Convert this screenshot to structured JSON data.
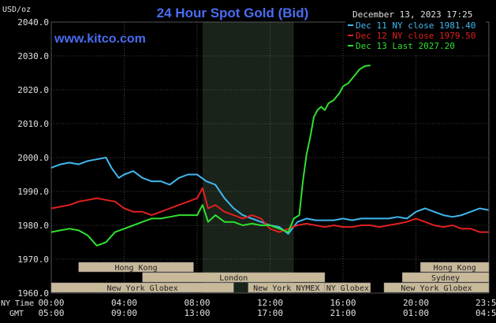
{
  "chart_data": {
    "type": "line",
    "title": "24 Hour Spot Gold (Bid)",
    "watermark": "www.kitco.com",
    "date_label": "December 13, 2023 17:25",
    "ylabel": "USD/oz",
    "ylim": [
      1960,
      2040
    ],
    "y_ticks": [
      "2040.0",
      "2030.0",
      "2020.0",
      "2010.0",
      "2000.0",
      "1990.0",
      "1980.0",
      "1970.0",
      "1960.0"
    ],
    "x_ticks_ny": [
      "00:00",
      "04:00",
      "08:00",
      "12:00",
      "16:00",
      "20:00",
      "23:59"
    ],
    "x_ticks_gmt": [
      "05:00",
      "09:00",
      "13:00",
      "17:00",
      "21:00",
      "01:00",
      "04:59"
    ],
    "ny_time_label": "NY Time",
    "gmt_label": "GMT",
    "grid": true,
    "legend_position": "top-right",
    "colors": {
      "background": "#000000",
      "grid": "#7a7a7a",
      "title": "#4a6cf0",
      "highlight": "#1a231a",
      "bar_fill": "#c8b99a",
      "bar_text": "#222222"
    },
    "markets": [
      {
        "name": "Hong Kong",
        "start": 1.5,
        "end": 7.8
      },
      {
        "name": "London",
        "start": 5.0,
        "end": 15.0
      },
      {
        "name": "New York Globex",
        "start": 0,
        "end": 10.0
      },
      {
        "name": "New York NYMEX",
        "start": 10.8,
        "end": 15.0
      },
      {
        "name": "NY Globex",
        "start": 15.0,
        "end": 17.5
      },
      {
        "name": "Hong Kong",
        "start": 20.25,
        "end": 24.0
      },
      {
        "name": "Sydney",
        "start": 19.25,
        "end": 24.0
      },
      {
        "name": "New York Globex",
        "start": 18.25,
        "end": 24.0
      }
    ],
    "highlight_range": [
      8.3,
      13.3
    ],
    "series": [
      {
        "name": "Dec 11 NY close 1981.40",
        "color": "#40b8f0",
        "x": [
          0,
          0.5,
          1,
          1.5,
          2,
          2.5,
          3,
          3.3,
          3.7,
          4,
          4.5,
          5,
          5.5,
          6,
          6.5,
          7,
          7.5,
          8,
          8.5,
          9,
          9.5,
          10,
          10.5,
          11,
          11.5,
          12,
          12.5,
          13,
          13.5,
          14,
          14.5,
          15,
          15.5,
          16,
          16.5,
          17,
          17.5,
          18,
          18.5,
          19,
          19.5,
          20,
          20.5,
          21,
          21.5,
          22,
          22.5,
          23,
          23.5,
          23.98
        ],
        "values": [
          1997,
          1998,
          1998.5,
          1998,
          1999,
          1999.5,
          2000,
          1997,
          1994,
          1995,
          1996,
          1994,
          1993,
          1993,
          1992,
          1994,
          1995,
          1995,
          1993,
          1992,
          1988,
          1985,
          1983,
          1982,
          1981,
          1980,
          1979.5,
          1977.5,
          1981,
          1982,
          1981.5,
          1981.5,
          1981.5,
          1982,
          1981.5,
          1982,
          1982,
          1982,
          1982,
          1982.5,
          1982,
          1984,
          1985,
          1984,
          1983,
          1982.5,
          1983,
          1984,
          1985,
          1984.5
        ]
      },
      {
        "name": "Dec 12 NY close 1979.50",
        "color": "#e02020",
        "x": [
          0,
          0.5,
          1,
          1.5,
          2,
          2.5,
          3,
          3.5,
          4,
          4.5,
          5,
          5.5,
          6,
          6.5,
          7,
          7.5,
          8,
          8.3,
          8.6,
          9,
          9.5,
          10,
          10.5,
          11,
          11.5,
          12,
          12.5,
          13,
          13.5,
          14,
          14.5,
          15,
          15.5,
          16,
          16.5,
          17,
          17.5,
          18,
          18.5,
          19,
          19.5,
          20,
          20.5,
          21,
          21.5,
          22,
          22.5,
          23,
          23.5,
          23.98
        ],
        "values": [
          1985,
          1985.5,
          1986,
          1987,
          1987.5,
          1988,
          1987.5,
          1987,
          1985,
          1984,
          1984,
          1983,
          1984,
          1985,
          1986,
          1987,
          1988,
          1991,
          1985,
          1986,
          1984,
          1983,
          1982,
          1983,
          1982,
          1979,
          1978,
          1979,
          1980,
          1980.5,
          1980,
          1979.5,
          1980,
          1979.5,
          1979.5,
          1980,
          1980,
          1979.5,
          1980,
          1980.5,
          1981,
          1982,
          1981,
          1980,
          1979.5,
          1980,
          1979,
          1979,
          1978,
          1978
        ]
      },
      {
        "name": "Dec 13 Last 2027.20",
        "color": "#30e030",
        "x": [
          0,
          0.5,
          1,
          1.5,
          2,
          2.5,
          3,
          3.5,
          4,
          4.5,
          5,
          5.5,
          6,
          6.5,
          7,
          7.5,
          8,
          8.3,
          8.6,
          9,
          9.5,
          10,
          10.5,
          11,
          11.5,
          12,
          12.5,
          13,
          13.3,
          13.6,
          13.8,
          14,
          14.2,
          14.4,
          14.6,
          14.8,
          15,
          15.2,
          15.5,
          15.8,
          16,
          16.3,
          16.6,
          16.9,
          17.2,
          17.5
        ],
        "values": [
          1978,
          1978.5,
          1979,
          1978.5,
          1977,
          1974,
          1975,
          1978,
          1979,
          1980,
          1981,
          1982,
          1982,
          1982.5,
          1983,
          1983,
          1983,
          1986,
          1981,
          1983,
          1981,
          1981,
          1980,
          1980.5,
          1980,
          1980,
          1979,
          1978,
          1982,
          1983,
          1993,
          2001,
          2006,
          2012,
          2014,
          2015,
          2014,
          2016,
          2017,
          2019,
          2021,
          2022,
          2024,
          2026,
          2027,
          2027.2
        ]
      }
    ]
  }
}
